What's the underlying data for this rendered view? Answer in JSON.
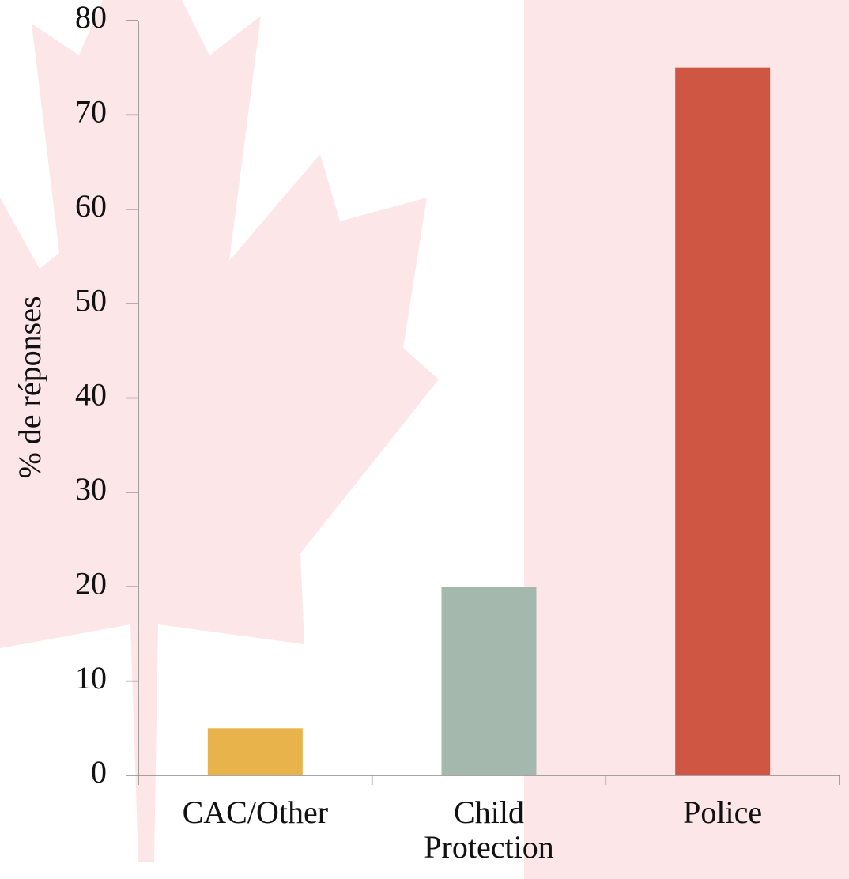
{
  "chart_data": {
    "type": "bar",
    "y_label": "% de réponses",
    "categories": [
      "CAC/Other",
      "Child Protection",
      "Police"
    ],
    "values": [
      5,
      20,
      75
    ],
    "colors": [
      "#e8b34b",
      "#a5b8ad",
      "#cf5642"
    ],
    "ylim": [
      0,
      80
    ],
    "yticks": [
      0,
      10,
      20,
      30,
      40,
      50,
      60,
      70,
      80
    ]
  }
}
